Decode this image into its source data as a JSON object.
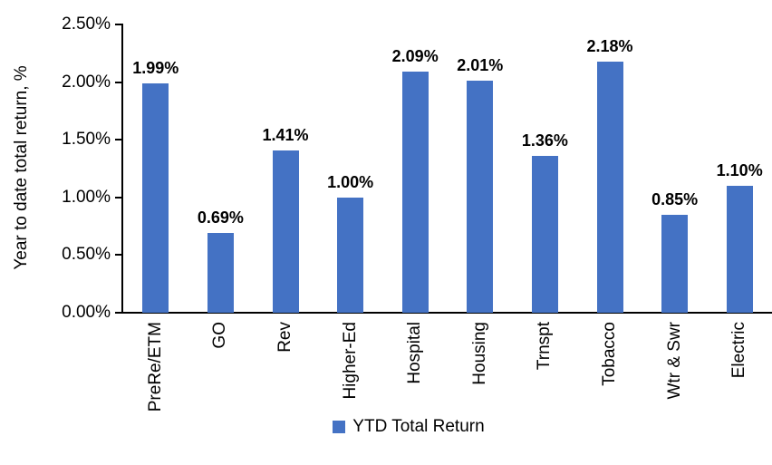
{
  "chart_data": {
    "type": "bar",
    "title": "",
    "xlabel": "",
    "ylabel": "Year to date total return, %",
    "categories": [
      "PreRe/ETM",
      "GO",
      "Rev",
      "Higher-Ed",
      "Hospital",
      "Housing",
      "Trnspt",
      "Tobacco",
      "Wtr & Swr",
      "Electric"
    ],
    "values": [
      1.99,
      0.69,
      1.41,
      1.0,
      2.09,
      2.01,
      1.36,
      2.18,
      0.85,
      1.1
    ],
    "value_labels": [
      "1.99%",
      "0.69%",
      "1.41%",
      "1.00%",
      "2.09%",
      "2.01%",
      "1.36%",
      "2.18%",
      "0.85%",
      "1.10%"
    ],
    "ylim": [
      0,
      2.5
    ],
    "yticks": [
      0,
      0.5,
      1.0,
      1.5,
      2.0,
      2.5
    ],
    "ytick_labels": [
      "0.00%",
      "0.50%",
      "1.00%",
      "1.50%",
      "2.00%",
      "2.50%"
    ],
    "legend": [
      "YTD Total Return"
    ],
    "legend_position": "bottom",
    "grid": false,
    "bar_color": "#4472C4",
    "axis_color": "#000000"
  }
}
